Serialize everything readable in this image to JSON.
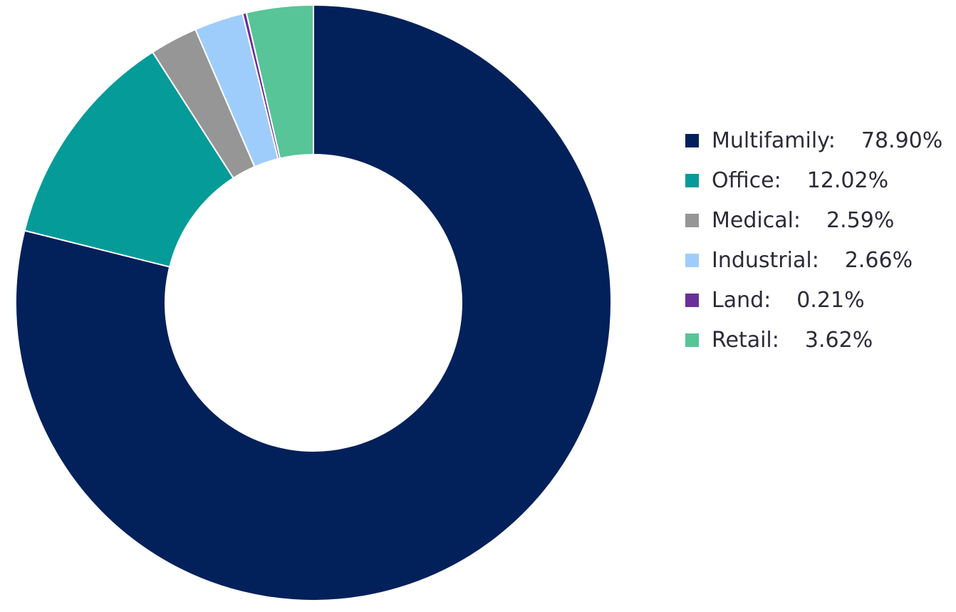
{
  "chart_data": {
    "type": "pie",
    "donut": true,
    "title": "",
    "start_angle_deg": 0,
    "direction": "clockwise",
    "legend_position": "right",
    "slices": [
      {
        "label": "Multifamily:",
        "value": 78.9,
        "value_text": "78.90%",
        "color": "#02205a"
      },
      {
        "label": "Office:",
        "value": 12.02,
        "value_text": "12.02%",
        "color": "#049b98"
      },
      {
        "label": "Medical:",
        "value": 2.59,
        "value_text": "2.59%",
        "color": "#969696"
      },
      {
        "label": "Industrial:",
        "value": 2.66,
        "value_text": "2.66%",
        "color": "#9fcdfb"
      },
      {
        "label": "Land:",
        "value": 0.21,
        "value_text": "0.21%",
        "color": "#6b2f9a"
      },
      {
        "label": "Retail:",
        "value": 3.62,
        "value_text": "3.62%",
        "color": "#57c597"
      }
    ]
  },
  "legend": {
    "items": [
      {
        "label": "Multifamily:",
        "value": "78.90%",
        "color": "#02205a"
      },
      {
        "label": "Office:",
        "value": "12.02%",
        "color": "#049b98"
      },
      {
        "label": "Medical:",
        "value": "2.59%",
        "color": "#969696"
      },
      {
        "label": "Industrial:",
        "value": "2.66%",
        "color": "#9fcdfb"
      },
      {
        "label": "Land:",
        "value": "0.21%",
        "color": "#6b2f9a"
      },
      {
        "label": "Retail:",
        "value": "3.62%",
        "color": "#57c597"
      }
    ]
  }
}
